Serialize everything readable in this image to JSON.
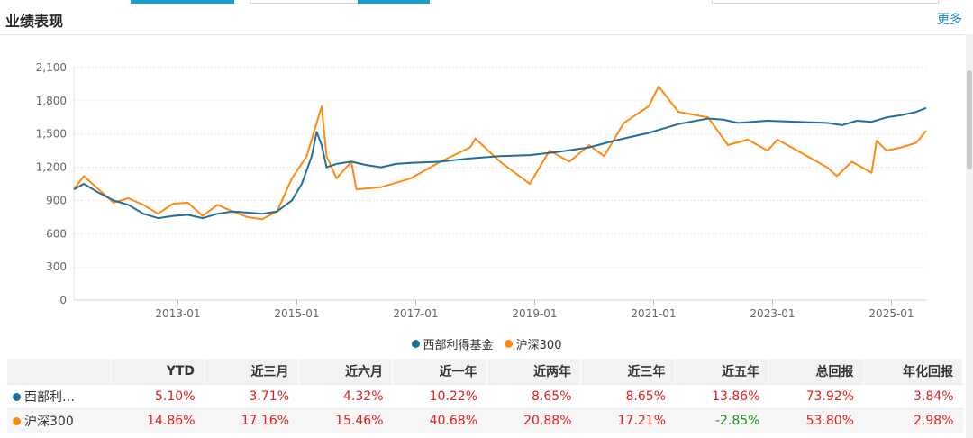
{
  "section": {
    "title": "业绩表现",
    "more_label": "更多"
  },
  "colors": {
    "fund": "#1f6f98",
    "index": "#ff8a12",
    "positive": "#e02020",
    "negative": "#1e8e1e"
  },
  "chart_data": {
    "type": "line",
    "ylim": [
      0,
      2100
    ],
    "y_ticks": [
      "0",
      "300",
      "600",
      "900",
      "1,200",
      "1,500",
      "1,800",
      "2,100"
    ],
    "x_ticks": [
      "2013-01",
      "2015-01",
      "2017-01",
      "2019-01",
      "2021-01",
      "2023-01",
      "2025-01"
    ],
    "x_range": [
      "2011-04",
      "2025-08"
    ],
    "grid": true,
    "legend_position": "bottom",
    "series": [
      {
        "name": "西部利得基金",
        "color": "#1f6f98",
        "points": [
          [
            "2011-04",
            1000
          ],
          [
            "2011-06",
            1050
          ],
          [
            "2011-09",
            970
          ],
          [
            "2011-12",
            900
          ],
          [
            "2012-03",
            860
          ],
          [
            "2012-06",
            780
          ],
          [
            "2012-09",
            740
          ],
          [
            "2012-12",
            760
          ],
          [
            "2013-03",
            770
          ],
          [
            "2013-06",
            740
          ],
          [
            "2013-09",
            780
          ],
          [
            "2013-12",
            800
          ],
          [
            "2014-03",
            790
          ],
          [
            "2014-06",
            780
          ],
          [
            "2014-09",
            800
          ],
          [
            "2014-12",
            900
          ],
          [
            "2015-02",
            1050
          ],
          [
            "2015-04",
            1300
          ],
          [
            "2015-05",
            1520
          ],
          [
            "2015-06",
            1400
          ],
          [
            "2015-07",
            1200
          ],
          [
            "2015-09",
            1230
          ],
          [
            "2015-12",
            1250
          ],
          [
            "2016-03",
            1220
          ],
          [
            "2016-06",
            1200
          ],
          [
            "2016-09",
            1230
          ],
          [
            "2016-12",
            1240
          ],
          [
            "2017-06",
            1250
          ],
          [
            "2017-12",
            1280
          ],
          [
            "2018-06",
            1300
          ],
          [
            "2018-12",
            1310
          ],
          [
            "2019-06",
            1340
          ],
          [
            "2019-12",
            1380
          ],
          [
            "2020-06",
            1450
          ],
          [
            "2020-12",
            1510
          ],
          [
            "2021-03",
            1550
          ],
          [
            "2021-06",
            1590
          ],
          [
            "2021-12",
            1640
          ],
          [
            "2022-03",
            1630
          ],
          [
            "2022-06",
            1600
          ],
          [
            "2022-12",
            1620
          ],
          [
            "2023-06",
            1610
          ],
          [
            "2023-12",
            1600
          ],
          [
            "2024-03",
            1580
          ],
          [
            "2024-06",
            1620
          ],
          [
            "2024-09",
            1610
          ],
          [
            "2024-12",
            1650
          ],
          [
            "2025-03",
            1670
          ],
          [
            "2025-06",
            1700
          ],
          [
            "2025-08",
            1735
          ]
        ]
      },
      {
        "name": "沪深300",
        "color": "#ff8a12",
        "points": [
          [
            "2011-04",
            1000
          ],
          [
            "2011-06",
            1120
          ],
          [
            "2011-09",
            1000
          ],
          [
            "2011-12",
            880
          ],
          [
            "2012-03",
            920
          ],
          [
            "2012-06",
            860
          ],
          [
            "2012-09",
            780
          ],
          [
            "2012-12",
            870
          ],
          [
            "2013-03",
            880
          ],
          [
            "2013-06",
            760
          ],
          [
            "2013-09",
            860
          ],
          [
            "2013-12",
            800
          ],
          [
            "2014-03",
            750
          ],
          [
            "2014-06",
            730
          ],
          [
            "2014-09",
            800
          ],
          [
            "2014-12",
            1100
          ],
          [
            "2015-03",
            1300
          ],
          [
            "2015-05",
            1600
          ],
          [
            "2015-06",
            1750
          ],
          [
            "2015-07",
            1300
          ],
          [
            "2015-09",
            1100
          ],
          [
            "2015-12",
            1250
          ],
          [
            "2016-01",
            1000
          ],
          [
            "2016-06",
            1020
          ],
          [
            "2016-12",
            1100
          ],
          [
            "2017-06",
            1250
          ],
          [
            "2017-12",
            1380
          ],
          [
            "2018-01",
            1460
          ],
          [
            "2018-06",
            1250
          ],
          [
            "2018-12",
            1050
          ],
          [
            "2019-04",
            1350
          ],
          [
            "2019-08",
            1250
          ],
          [
            "2019-12",
            1400
          ],
          [
            "2020-03",
            1300
          ],
          [
            "2020-07",
            1600
          ],
          [
            "2020-12",
            1750
          ],
          [
            "2021-02",
            1930
          ],
          [
            "2021-06",
            1700
          ],
          [
            "2021-12",
            1650
          ],
          [
            "2022-04",
            1400
          ],
          [
            "2022-08",
            1450
          ],
          [
            "2022-12",
            1350
          ],
          [
            "2023-02",
            1450
          ],
          [
            "2023-08",
            1300
          ],
          [
            "2023-12",
            1200
          ],
          [
            "2024-02",
            1120
          ],
          [
            "2024-05",
            1250
          ],
          [
            "2024-09",
            1150
          ],
          [
            "2024-10",
            1440
          ],
          [
            "2024-12",
            1350
          ],
          [
            "2025-03",
            1380
          ],
          [
            "2025-06",
            1420
          ],
          [
            "2025-08",
            1530
          ]
        ]
      }
    ]
  },
  "legend": [
    {
      "label": "西部利得基金",
      "color": "#1f6f98"
    },
    {
      "label": "沪深300",
      "color": "#ff8a12"
    }
  ],
  "table": {
    "headers": [
      "",
      "YTD",
      "近三月",
      "近六月",
      "近一年",
      "近两年",
      "近三年",
      "近五年",
      "总回报",
      "年化回报"
    ],
    "rows": [
      {
        "name": "西部利…",
        "color": "#1f6f98",
        "values": [
          "5.10%",
          "3.71%",
          "4.32%",
          "10.22%",
          "8.65%",
          "8.65%",
          "13.86%",
          "73.92%",
          "3.84%"
        ],
        "signs": [
          "pos",
          "pos",
          "pos",
          "pos",
          "pos",
          "pos",
          "pos",
          "pos",
          "pos"
        ]
      },
      {
        "name": "沪深300",
        "color": "#ff8a12",
        "values": [
          "14.86%",
          "17.16%",
          "15.46%",
          "40.68%",
          "20.88%",
          "17.21%",
          "-2.85%",
          "53.80%",
          "2.98%"
        ],
        "signs": [
          "pos",
          "pos",
          "pos",
          "pos",
          "pos",
          "pos",
          "neg",
          "pos",
          "pos"
        ]
      }
    ]
  }
}
